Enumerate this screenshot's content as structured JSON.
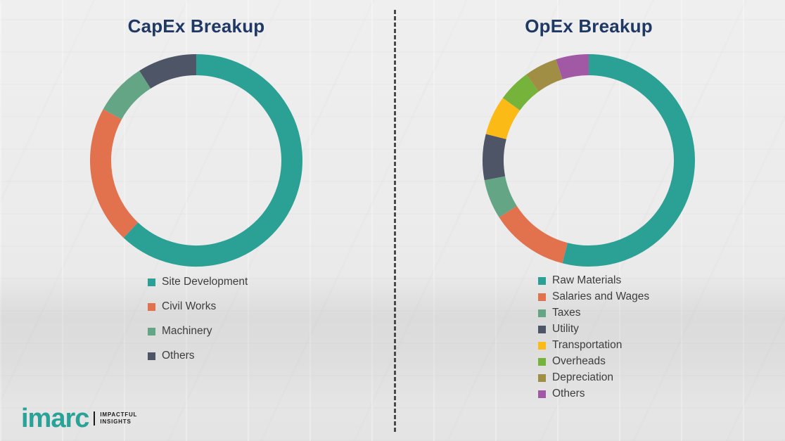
{
  "logo": {
    "brand": "imarc",
    "tagline1": "IMPACTFUL",
    "tagline2": "INSIGHTS",
    "brand_color": "#29A398"
  },
  "divider_style": "vertical-dashed",
  "chart_data": [
    {
      "type": "pie",
      "subtype": "donut",
      "title": "CapEx Breakup",
      "title_color": "#1F3864",
      "legend_position": "bottom",
      "labels": [
        "Site Development",
        "Civil Works",
        "Machinery",
        "Others"
      ],
      "values": [
        62,
        21,
        8,
        9
      ],
      "colors": [
        "#2BA094",
        "#E2714D",
        "#63A584",
        "#4D5566"
      ]
    },
    {
      "type": "pie",
      "subtype": "donut",
      "title": "OpEx Breakup",
      "title_color": "#1F3864",
      "legend_position": "bottom",
      "labels": [
        "Raw Materials",
        "Salaries and Wages",
        "Taxes",
        "Utility",
        "Transportation",
        "Overheads",
        "Depreciation",
        "Others"
      ],
      "values": [
        54,
        12,
        6,
        7,
        6,
        5,
        5,
        5
      ],
      "colors": [
        "#2BA094",
        "#E2714D",
        "#63A584",
        "#4D5566",
        "#FBBA16",
        "#76B33A",
        "#9F8E44",
        "#A158A5"
      ]
    }
  ]
}
